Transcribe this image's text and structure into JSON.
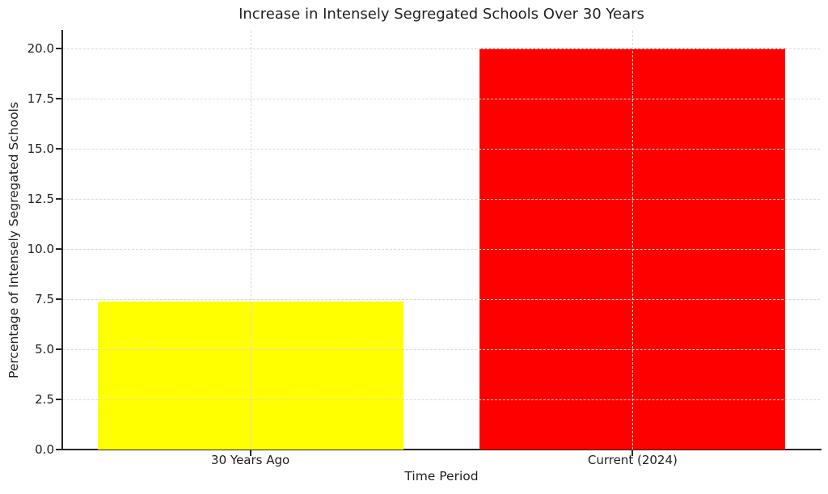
{
  "chart_data": {
    "type": "bar",
    "title": "Increase in Intensely Segregated Schools Over 30 Years",
    "xlabel": "Time Period",
    "ylabel": "Percentage of Intensely Segregated Schools",
    "categories": [
      "30 Years Ago",
      "Current (2024)"
    ],
    "values": [
      7.4,
      20.0
    ],
    "bar_colors": [
      "#ffff00",
      "#ff0000"
    ],
    "ylim": [
      0,
      20.9
    ],
    "yticks": [
      0.0,
      2.5,
      5.0,
      7.5,
      10.0,
      12.5,
      15.0,
      17.5,
      20.0
    ],
    "ytick_labels": [
      "0.0",
      "2.5",
      "5.0",
      "7.5",
      "10.0",
      "12.5",
      "15.0",
      "17.5",
      "20.0"
    ],
    "grid": true,
    "grid_on_top_of_bars": true,
    "grid_color": "#d9d9d9",
    "axis_color": "#262626",
    "text_color": "#1f1f1f",
    "background": "#ffffff",
    "legend": "none",
    "bar_width_fraction": 0.8
  }
}
